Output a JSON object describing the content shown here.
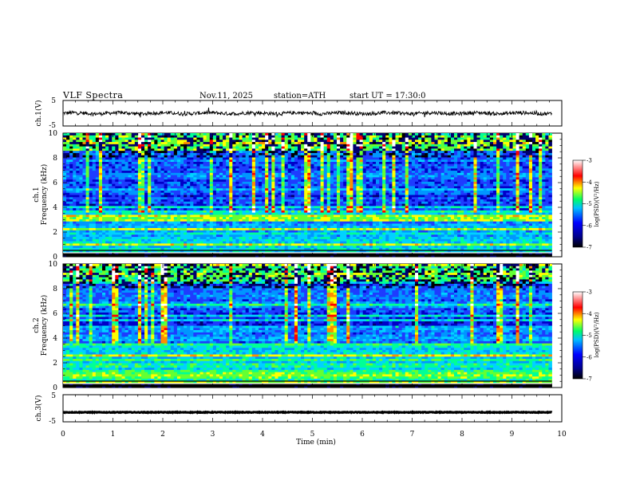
{
  "header": {
    "title": "VLF Spectra",
    "date": "Nov.11, 2025",
    "station": "station=ATH",
    "start_ut": "start UT = 17:30:0"
  },
  "chart_data": {
    "type": "heatmap",
    "title": "VLF Spectra",
    "xlabel": "Time (min)",
    "xlim": [
      0,
      10
    ],
    "x_ticks": [
      "0",
      "1",
      "2",
      "3",
      "4",
      "5",
      "6",
      "7",
      "8",
      "9",
      "10"
    ],
    "panels": [
      {
        "id": "ch1_waveform",
        "type": "line",
        "ylabel": "ch.1(V)",
        "ylim": [
          -5,
          5
        ],
        "y_ticks": [
          "5",
          "-5"
        ],
        "description_values": "noisy signal around 0 V spanning roughly -1 to 1 V",
        "data_extent_min": [
          0,
          9.8
        ]
      },
      {
        "id": "ch1_spectrogram",
        "type": "heatmap",
        "ylabel_top": "ch.1",
        "ylabel": "Frequency (kHz)",
        "ylim": [
          0,
          10
        ],
        "y_ticks": [
          "0",
          "2",
          "4",
          "6",
          "8",
          "10"
        ],
        "data_extent_min": [
          0,
          9.8
        ],
        "colorbar": {
          "label": "log(PSD)(V²/Hz)",
          "range": [
            -7,
            -3
          ],
          "ticks": [
            "-3",
            "-4",
            "-5",
            "-6",
            "-7"
          ]
        }
      },
      {
        "id": "ch2_spectrogram",
        "type": "heatmap",
        "ylabel_top": "ch.2",
        "ylabel": "Frequency (kHz)",
        "ylim": [
          0,
          10
        ],
        "y_ticks": [
          "0",
          "2",
          "4",
          "6",
          "8",
          "10"
        ],
        "data_extent_min": [
          0,
          9.8
        ],
        "colorbar": {
          "label": "log(PSD)(V²/Hz)",
          "range": [
            -7,
            -3
          ],
          "ticks": [
            "-3",
            "-4",
            "-5",
            "-6",
            "-7"
          ]
        }
      },
      {
        "id": "ch3_waveform",
        "type": "line",
        "ylabel": "ch.3(V)",
        "ylim": [
          -5,
          5
        ],
        "y_ticks": [
          "5",
          "-5"
        ],
        "description_values": "flat signal near -1.5 V",
        "data_extent_min": [
          0,
          9.8
        ]
      }
    ],
    "colormap": [
      "#000000",
      "#00008b",
      "#0000ff",
      "#00bfff",
      "#00ff7f",
      "#ffff00",
      "#ff0000",
      "#ffffff"
    ]
  }
}
